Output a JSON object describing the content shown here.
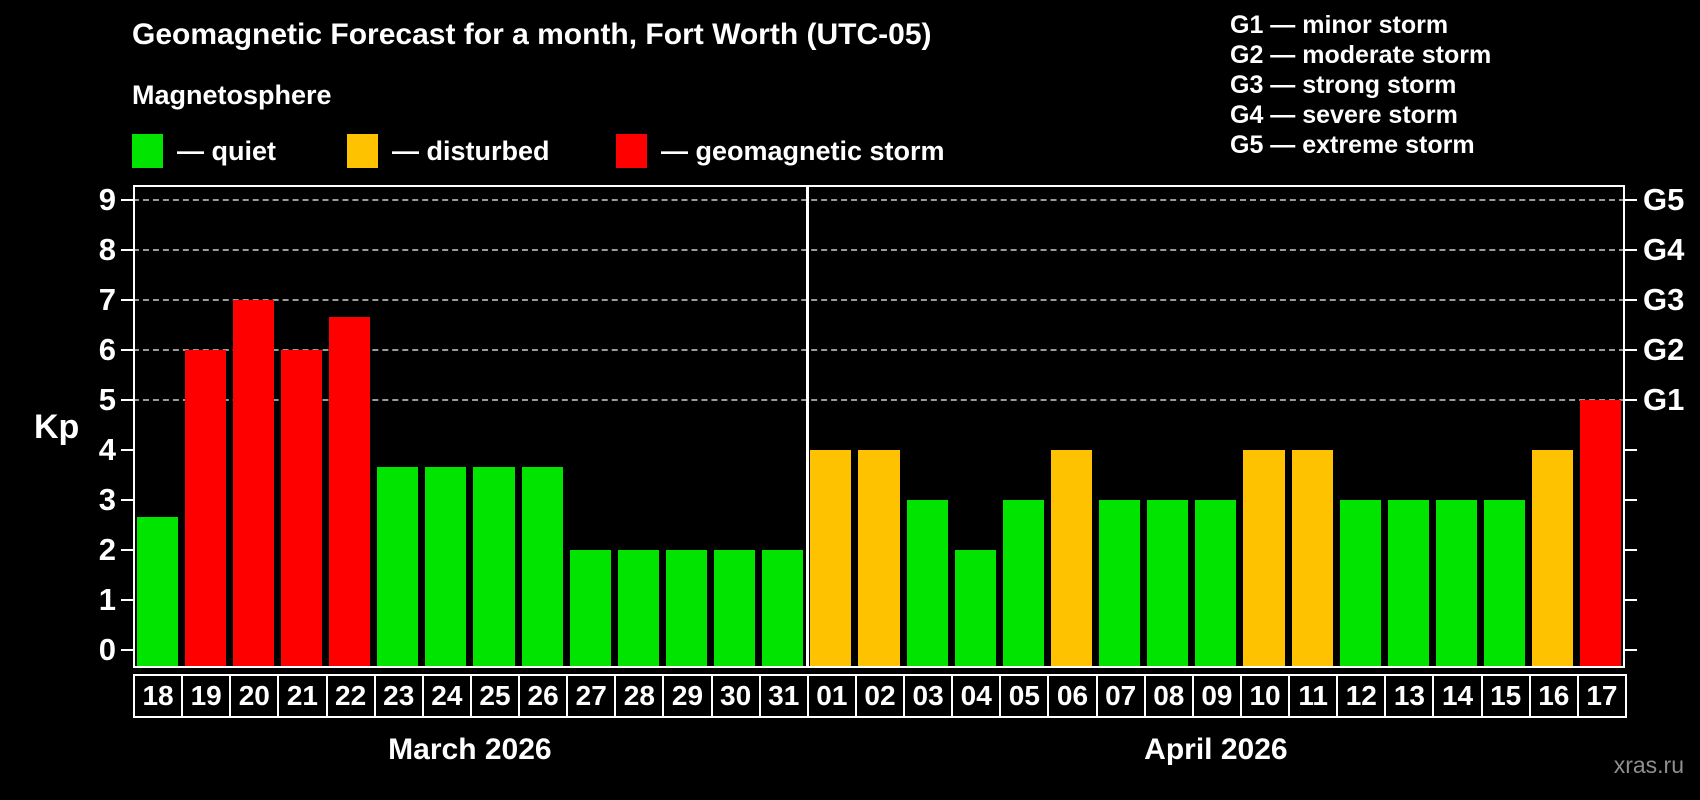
{
  "header": {
    "title": "Geomagnetic Forecast for a month, Fort Worth (UTC-05)",
    "subtitle": "Magnetosphere"
  },
  "legend": {
    "items": [
      {
        "key": "quiet",
        "label": "— quiet",
        "color": "#00e400"
      },
      {
        "key": "disturbed",
        "label": "— disturbed",
        "color": "#ffc200"
      },
      {
        "key": "storm",
        "label": "— geomagnetic storm",
        "color": "#ff0000"
      }
    ]
  },
  "g_legend": {
    "lines": [
      "G1 — minor storm",
      "G2 — moderate storm",
      "G3 — strong storm",
      "G4 — severe storm",
      "G5 — extreme storm"
    ]
  },
  "chart_data": {
    "type": "bar",
    "title": "Geomagnetic Forecast for a month, Fort Worth (UTC-05)",
    "ylabel": "Kp",
    "ylim": [
      0,
      9
    ],
    "yticks": [
      0,
      1,
      2,
      3,
      4,
      5,
      6,
      7,
      8,
      9
    ],
    "gridlines_at": [
      5,
      6,
      7,
      8,
      9
    ],
    "grid": "dashed horizontal at storm levels only",
    "right_axis_labels": [
      {
        "kp": 5,
        "label": "G1"
      },
      {
        "kp": 6,
        "label": "G2"
      },
      {
        "kp": 7,
        "label": "G3"
      },
      {
        "kp": 8,
        "label": "G4"
      },
      {
        "kp": 9,
        "label": "G5"
      }
    ],
    "status_colors": {
      "quiet": "#00e400",
      "disturbed": "#ffc200",
      "storm": "#ff0000"
    },
    "months": [
      {
        "label": "March 2026",
        "days": [
          {
            "day": "18",
            "kp": 2.67,
            "status": "quiet"
          },
          {
            "day": "19",
            "kp": 6,
            "status": "storm"
          },
          {
            "day": "20",
            "kp": 7,
            "status": "storm"
          },
          {
            "day": "21",
            "kp": 6,
            "status": "storm"
          },
          {
            "day": "22",
            "kp": 6.67,
            "status": "storm"
          },
          {
            "day": "23",
            "kp": 3.67,
            "status": "quiet"
          },
          {
            "day": "24",
            "kp": 3.67,
            "status": "quiet"
          },
          {
            "day": "25",
            "kp": 3.67,
            "status": "quiet"
          },
          {
            "day": "26",
            "kp": 3.67,
            "status": "quiet"
          },
          {
            "day": "27",
            "kp": 2,
            "status": "quiet"
          },
          {
            "day": "28",
            "kp": 2,
            "status": "quiet"
          },
          {
            "day": "29",
            "kp": 2,
            "status": "quiet"
          },
          {
            "day": "30",
            "kp": 2,
            "status": "quiet"
          },
          {
            "day": "31",
            "kp": 2,
            "status": "quiet"
          }
        ]
      },
      {
        "label": "April 2026",
        "days": [
          {
            "day": "01",
            "kp": 4,
            "status": "disturbed"
          },
          {
            "day": "02",
            "kp": 4,
            "status": "disturbed"
          },
          {
            "day": "03",
            "kp": 3,
            "status": "quiet"
          },
          {
            "day": "04",
            "kp": 2,
            "status": "quiet"
          },
          {
            "day": "05",
            "kp": 3,
            "status": "quiet"
          },
          {
            "day": "06",
            "kp": 4,
            "status": "disturbed"
          },
          {
            "day": "07",
            "kp": 3,
            "status": "quiet"
          },
          {
            "day": "08",
            "kp": 3,
            "status": "quiet"
          },
          {
            "day": "09",
            "kp": 3,
            "status": "quiet"
          },
          {
            "day": "10",
            "kp": 4,
            "status": "disturbed"
          },
          {
            "day": "11",
            "kp": 4,
            "status": "disturbed"
          },
          {
            "day": "12",
            "kp": 3,
            "status": "quiet"
          },
          {
            "day": "13",
            "kp": 3,
            "status": "quiet"
          },
          {
            "day": "14",
            "kp": 3,
            "status": "quiet"
          },
          {
            "day": "15",
            "kp": 3,
            "status": "quiet"
          },
          {
            "day": "16",
            "kp": 4,
            "status": "disturbed"
          },
          {
            "day": "17",
            "kp": 5,
            "status": "storm"
          }
        ]
      }
    ]
  },
  "watermark": "xras.ru"
}
